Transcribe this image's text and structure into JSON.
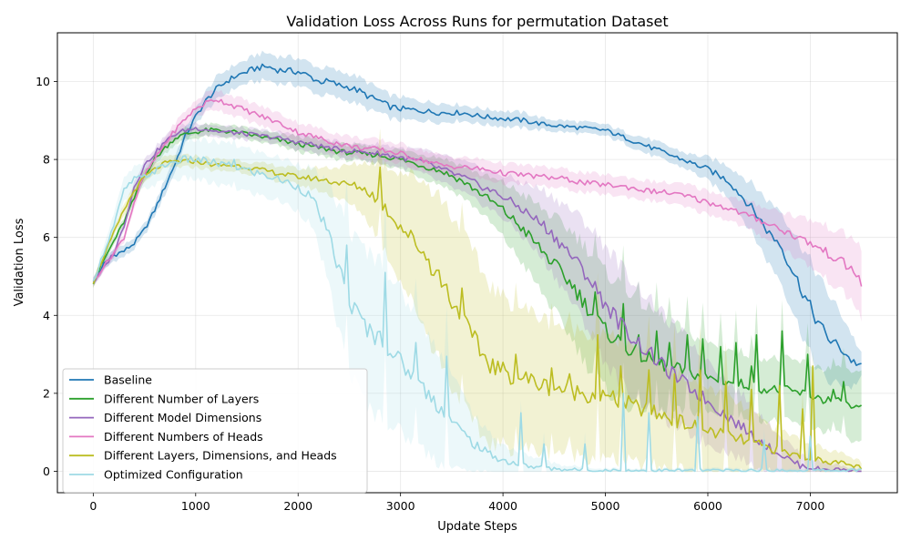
{
  "chart_data": {
    "type": "line",
    "title": "Validation Loss Across Runs for permutation Dataset",
    "xlabel": "Update Steps",
    "ylabel": "Validation Loss",
    "xlim": [
      -350,
      7850
    ],
    "ylim": [
      -0.55,
      11.25
    ],
    "xticks": [
      0,
      1000,
      2000,
      3000,
      4000,
      5000,
      6000,
      7000
    ],
    "yticks": [
      0,
      2,
      4,
      6,
      8,
      10
    ],
    "grid": true,
    "legend_position": "lower-left",
    "series": [
      {
        "name": "Baseline",
        "color": "#1f77b4",
        "x": [
          0,
          100,
          200,
          300,
          400,
          500,
          600,
          700,
          800,
          900,
          1000,
          1100,
          1200,
          1300,
          1400,
          1500,
          1600,
          1700,
          1800,
          1900,
          2000,
          2100,
          2200,
          2300,
          2400,
          2500,
          2600,
          2700,
          2800,
          2900,
          3000,
          3200,
          3400,
          3600,
          3800,
          4000,
          4200,
          4400,
          4600,
          4800,
          5000,
          5200,
          5400,
          5600,
          5800,
          6000,
          6100,
          6200,
          6300,
          6400,
          6500,
          6600,
          6700,
          6800,
          6900,
          7000,
          7100,
          7200,
          7300,
          7400,
          7500
        ],
        "y": [
          4.85,
          5.3,
          5.55,
          5.65,
          5.85,
          6.2,
          6.7,
          7.3,
          7.9,
          8.6,
          9.1,
          9.5,
          9.8,
          10.0,
          10.15,
          10.25,
          10.35,
          10.38,
          10.3,
          10.28,
          10.25,
          10.15,
          10.0,
          10.0,
          9.9,
          9.85,
          9.75,
          9.6,
          9.5,
          9.35,
          9.3,
          9.25,
          9.2,
          9.2,
          9.1,
          9.05,
          9.0,
          8.9,
          8.85,
          8.8,
          8.75,
          8.55,
          8.35,
          8.15,
          7.95,
          7.75,
          7.6,
          7.45,
          7.15,
          6.85,
          6.5,
          6.1,
          5.85,
          5.3,
          4.75,
          4.2,
          3.7,
          3.35,
          3.15,
          2.85,
          2.7
        ],
        "band": [
          0.1,
          0.15,
          0.15,
          0.15,
          0.15,
          0.15,
          0.15,
          0.2,
          0.2,
          0.2,
          0.2,
          0.25,
          0.3,
          0.3,
          0.3,
          0.3,
          0.35,
          0.35,
          0.35,
          0.35,
          0.35,
          0.35,
          0.35,
          0.35,
          0.35,
          0.35,
          0.35,
          0.35,
          0.3,
          0.3,
          0.3,
          0.25,
          0.25,
          0.2,
          0.2,
          0.2,
          0.2,
          0.15,
          0.15,
          0.15,
          0.15,
          0.15,
          0.2,
          0.2,
          0.2,
          0.3,
          0.35,
          0.4,
          0.5,
          0.6,
          0.7,
          0.8,
          0.9,
          1.0,
          1.1,
          1.2,
          1.2,
          1.1,
          0.9,
          0.7,
          0.3
        ]
      },
      {
        "name": "Different Number of Layers",
        "color": "#2ca02c",
        "x": [
          0,
          100,
          200,
          300,
          400,
          500,
          600,
          700,
          800,
          900,
          1000,
          1100,
          1200,
          1300,
          1400,
          1500,
          1600,
          1800,
          2000,
          2200,
          2400,
          2600,
          2800,
          3000,
          3200,
          3400,
          3600,
          3800,
          4000,
          4100,
          4200,
          4300,
          4400,
          4500,
          4600,
          4700,
          4800,
          4900,
          5000,
          5200,
          5400,
          5600,
          5800,
          6000,
          6200,
          6400,
          6600,
          6800,
          7000,
          7200,
          7400,
          7500
        ],
        "y": [
          4.85,
          5.4,
          5.9,
          6.4,
          7.0,
          7.6,
          8.0,
          8.3,
          8.55,
          8.65,
          8.7,
          8.75,
          8.75,
          8.72,
          8.7,
          8.65,
          8.6,
          8.5,
          8.4,
          8.3,
          8.2,
          8.15,
          8.1,
          8.0,
          7.85,
          7.7,
          7.45,
          7.1,
          6.7,
          6.45,
          6.2,
          5.9,
          5.6,
          5.3,
          5.0,
          4.7,
          4.3,
          3.95,
          3.6,
          3.2,
          2.9,
          2.7,
          2.55,
          2.4,
          2.3,
          2.2,
          2.1,
          2.05,
          1.95,
          1.8,
          1.65,
          1.55
        ],
        "spikes": [
          [
            4900,
            4.6
          ],
          [
            5180,
            4.3
          ],
          [
            5320,
            3.5
          ],
          [
            5500,
            3.6
          ],
          [
            5620,
            3.3
          ],
          [
            5790,
            3.5
          ],
          [
            5960,
            3.4
          ],
          [
            6130,
            3.2
          ],
          [
            6280,
            3.3
          ],
          [
            6430,
            2.7
          ],
          [
            6480,
            3.5
          ],
          [
            6730,
            3.6
          ],
          [
            6970,
            3.0
          ],
          [
            7220,
            2.1
          ],
          [
            7320,
            2.3
          ]
        ],
        "band": [
          0.1,
          0.1,
          0.1,
          0.1,
          0.15,
          0.15,
          0.15,
          0.15,
          0.15,
          0.15,
          0.15,
          0.15,
          0.15,
          0.15,
          0.15,
          0.15,
          0.15,
          0.15,
          0.2,
          0.2,
          0.2,
          0.2,
          0.2,
          0.25,
          0.3,
          0.35,
          0.4,
          0.5,
          0.7,
          0.8,
          0.9,
          1.0,
          1.1,
          1.2,
          1.3,
          1.4,
          1.5,
          1.5,
          1.5,
          1.5,
          1.3,
          1.2,
          1.0,
          0.9,
          0.85,
          0.8,
          0.8,
          0.8,
          0.8,
          0.8,
          0.9,
          0.9
        ]
      },
      {
        "name": "Different Model Dimensions",
        "color": "#9467bd",
        "x": [
          0,
          100,
          200,
          300,
          400,
          500,
          600,
          700,
          800,
          900,
          1000,
          1100,
          1200,
          1300,
          1400,
          1500,
          1600,
          1800,
          2000,
          2200,
          2400,
          2600,
          2800,
          3000,
          3200,
          3400,
          3600,
          3800,
          4000,
          4200,
          4400,
          4600,
          4800,
          5000,
          5200,
          5400,
          5600,
          5800,
          6000,
          6200,
          6400,
          6600,
          6800,
          6900,
          7000,
          7100,
          7200,
          7300,
          7400,
          7500
        ],
        "y": [
          4.85,
          5.2,
          5.6,
          6.3,
          7.3,
          7.85,
          8.15,
          8.45,
          8.65,
          8.75,
          8.8,
          8.78,
          8.72,
          8.7,
          8.68,
          8.65,
          8.62,
          8.55,
          8.45,
          8.35,
          8.25,
          8.2,
          8.15,
          8.05,
          7.95,
          7.75,
          7.55,
          7.3,
          7.05,
          6.7,
          6.3,
          5.75,
          5.1,
          4.3,
          3.6,
          3.1,
          2.6,
          2.2,
          1.8,
          1.4,
          1.0,
          0.6,
          0.3,
          0.15,
          0.1,
          0.05,
          0.05,
          0.05,
          0.02,
          0.02
        ],
        "band": [
          0.1,
          0.1,
          0.1,
          0.1,
          0.15,
          0.15,
          0.15,
          0.15,
          0.15,
          0.15,
          0.15,
          0.15,
          0.15,
          0.15,
          0.15,
          0.15,
          0.15,
          0.15,
          0.2,
          0.2,
          0.2,
          0.2,
          0.25,
          0.25,
          0.3,
          0.35,
          0.4,
          0.45,
          0.55,
          0.7,
          0.9,
          1.1,
          1.3,
          1.5,
          1.5,
          1.4,
          1.3,
          1.2,
          1.1,
          0.9,
          0.8,
          0.6,
          0.4,
          0.3,
          0.25,
          0.2,
          0.15,
          0.1,
          0.05,
          0.05
        ]
      },
      {
        "name": "Different Numbers of Heads",
        "color": "#e377c2",
        "x": [
          0,
          100,
          200,
          300,
          400,
          500,
          600,
          700,
          800,
          900,
          1000,
          1100,
          1200,
          1300,
          1400,
          1500,
          1600,
          1800,
          2000,
          2200,
          2400,
          2600,
          2800,
          3000,
          3200,
          3400,
          3600,
          3800,
          4000,
          4200,
          4400,
          4600,
          4800,
          5000,
          5200,
          5400,
          5600,
          5800,
          6000,
          6200,
          6400,
          6600,
          6800,
          7000,
          7200,
          7400,
          7500
        ],
        "y": [
          4.85,
          5.25,
          5.6,
          6.0,
          6.9,
          7.6,
          8.0,
          8.4,
          8.75,
          9.05,
          9.3,
          9.45,
          9.55,
          9.45,
          9.35,
          9.25,
          9.15,
          8.95,
          8.7,
          8.55,
          8.4,
          8.3,
          8.25,
          8.15,
          8.0,
          7.85,
          7.8,
          7.75,
          7.65,
          7.6,
          7.55,
          7.5,
          7.4,
          7.35,
          7.3,
          7.2,
          7.15,
          7.05,
          6.9,
          6.75,
          6.55,
          6.35,
          6.1,
          5.85,
          5.55,
          5.2,
          4.85
        ],
        "band": [
          0.1,
          0.1,
          0.1,
          0.1,
          0.15,
          0.15,
          0.15,
          0.15,
          0.2,
          0.2,
          0.2,
          0.25,
          0.25,
          0.25,
          0.25,
          0.25,
          0.25,
          0.25,
          0.25,
          0.25,
          0.25,
          0.25,
          0.25,
          0.25,
          0.25,
          0.25,
          0.25,
          0.25,
          0.25,
          0.25,
          0.25,
          0.25,
          0.25,
          0.25,
          0.25,
          0.25,
          0.25,
          0.3,
          0.3,
          0.3,
          0.35,
          0.4,
          0.5,
          0.6,
          0.7,
          0.8,
          0.9
        ]
      },
      {
        "name": "Different Layers, Dimensions, and Heads",
        "color": "#bcbd22",
        "x": [
          0,
          100,
          200,
          300,
          400,
          500,
          600,
          700,
          800,
          900,
          1000,
          1100,
          1200,
          1300,
          1400,
          1500,
          1600,
          1800,
          2000,
          2200,
          2400,
          2600,
          2700,
          2800,
          2900,
          3000,
          3100,
          3200,
          3300,
          3400,
          3500,
          3600,
          3700,
          3800,
          3900,
          4000,
          4200,
          4400,
          4600,
          4800,
          5000,
          5200,
          5400,
          5600,
          5800,
          6000,
          6200,
          6400,
          6600,
          6800,
          7000,
          7200,
          7400,
          7500
        ],
        "y": [
          4.85,
          5.5,
          6.1,
          6.7,
          7.2,
          7.55,
          7.75,
          7.9,
          7.95,
          7.95,
          7.95,
          7.9,
          7.85,
          7.85,
          7.85,
          7.8,
          7.75,
          7.65,
          7.55,
          7.5,
          7.4,
          7.3,
          7.15,
          6.9,
          6.6,
          6.3,
          6.0,
          5.7,
          5.3,
          4.9,
          4.4,
          3.9,
          3.4,
          3.0,
          2.7,
          2.55,
          2.4,
          2.2,
          2.1,
          2.0,
          1.9,
          1.75,
          1.55,
          1.4,
          1.2,
          1.05,
          0.9,
          0.75,
          0.6,
          0.45,
          0.35,
          0.25,
          0.15,
          0.1
        ],
        "spikes": [
          [
            2790,
            7.8
          ],
          [
            3190,
            5.6
          ],
          [
            3590,
            4.7
          ],
          [
            4130,
            3.0
          ],
          [
            4480,
            2.65
          ],
          [
            4650,
            2.5
          ],
          [
            4920,
            3.5
          ],
          [
            5150,
            2.7
          ],
          [
            5420,
            2.6
          ],
          [
            5680,
            2.5
          ],
          [
            5920,
            2.6
          ],
          [
            6180,
            2.3
          ],
          [
            6430,
            2.1
          ],
          [
            6690,
            2.2
          ],
          [
            6920,
            1.6
          ],
          [
            7020,
            2.7
          ]
        ],
        "band": [
          0.1,
          0.1,
          0.1,
          0.15,
          0.15,
          0.15,
          0.15,
          0.15,
          0.15,
          0.15,
          0.15,
          0.15,
          0.15,
          0.15,
          0.15,
          0.15,
          0.15,
          0.2,
          0.2,
          0.3,
          0.4,
          0.6,
          0.8,
          1.0,
          1.2,
          1.4,
          1.6,
          1.8,
          2.0,
          2.1,
          2.2,
          2.2,
          2.2,
          2.1,
          2.0,
          1.9,
          1.8,
          1.7,
          1.6,
          1.6,
          1.6,
          1.5,
          1.4,
          1.3,
          1.2,
          1.1,
          1.0,
          0.8,
          0.6,
          0.5,
          0.4,
          0.3,
          0.2,
          0.15
        ]
      },
      {
        "name": "Optimized Configuration",
        "color": "#9edae5",
        "x": [
          0,
          100,
          200,
          300,
          400,
          500,
          600,
          700,
          800,
          900,
          1000,
          1200,
          1400,
          1600,
          1800,
          2000,
          2100,
          2200,
          2300,
          2400,
          2500,
          2600,
          2700,
          2800,
          2900,
          3000,
          3100,
          3200,
          3300,
          3400,
          3500,
          3600,
          3700,
          3800,
          3900,
          4000,
          4200,
          4400,
          4600,
          4800,
          5000,
          5400,
          5800,
          6200,
          6600,
          7000,
          7500
        ],
        "y": [
          4.85,
          5.6,
          6.3,
          7.2,
          7.5,
          7.55,
          7.7,
          7.85,
          7.95,
          8.0,
          8.0,
          7.9,
          7.8,
          7.65,
          7.5,
          7.3,
          7.1,
          6.7,
          6.0,
          5.2,
          4.4,
          3.9,
          3.6,
          3.4,
          3.1,
          2.8,
          2.5,
          2.2,
          1.9,
          1.6,
          1.3,
          1.0,
          0.75,
          0.55,
          0.4,
          0.28,
          0.15,
          0.08,
          0.05,
          0.03,
          0.02,
          0.02,
          0.02,
          0.02,
          0.02,
          0.02,
          0.02
        ],
        "spikes": [
          [
            1380,
            8.0
          ],
          [
            2480,
            5.8
          ],
          [
            2840,
            5.1
          ],
          [
            3150,
            3.3
          ],
          [
            3450,
            2.95
          ],
          [
            4170,
            1.5
          ],
          [
            4390,
            0.7
          ],
          [
            4800,
            0.7
          ],
          [
            5180,
            2.0
          ],
          [
            5420,
            1.5
          ],
          [
            5900,
            1.4
          ],
          [
            6550,
            0.8
          ],
          [
            7000,
            0.9
          ]
        ],
        "band": [
          0.1,
          0.2,
          0.3,
          0.3,
          0.3,
          0.3,
          0.35,
          0.4,
          0.45,
          0.5,
          0.5,
          0.55,
          0.55,
          0.55,
          0.55,
          0.6,
          0.7,
          0.9,
          1.3,
          1.6,
          1.8,
          1.9,
          2.0,
          2.0,
          1.9,
          1.8,
          1.7,
          1.6,
          1.5,
          1.4,
          1.2,
          1.0,
          0.8,
          0.6,
          0.5,
          0.4,
          0.3,
          0.2,
          0.1,
          0.08,
          0.05,
          0.05,
          0.05,
          0.05,
          0.05,
          0.05,
          0.05
        ]
      }
    ]
  }
}
